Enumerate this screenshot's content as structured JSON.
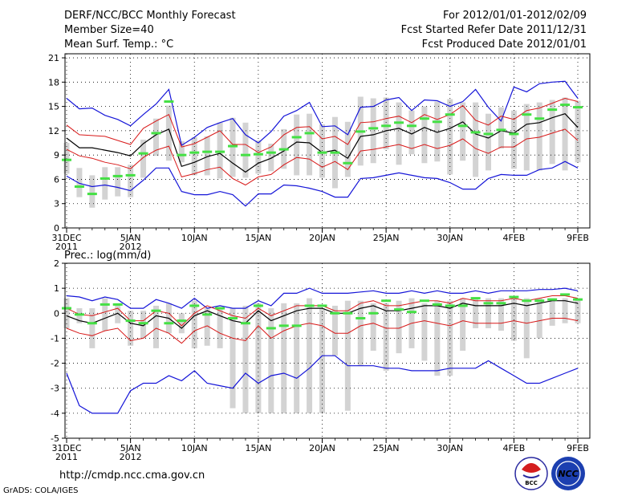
{
  "header": {
    "title": "DERF/NCC/BCC Monthly Forecast",
    "member_size": "Member Size=40",
    "variable": "Mean Surf. Temp.: °C",
    "period": "For 2012/01/01-2012/02/09",
    "started": "Fcst Started Refer Date 2011/12/31",
    "produced": "Fcst Produced Date 2012/01/01"
  },
  "footer": {
    "url": "http://cmdp.ncc.cma.gov.cn",
    "grads": "GrADS: COLA/IGES",
    "logo_bcc": "BCC",
    "logo_ncc": "NCC"
  },
  "colors": {
    "max_min": "#1515d8",
    "std": "#d81818",
    "mean": "#000000",
    "bar": "#d3d3d3",
    "median": "#44e044",
    "grid": "#000000"
  },
  "chart_data": [
    {
      "type": "line",
      "title": "Mean Surf. Temp.: °C",
      "x_tick_labels": [
        {
          "label": "31DEC",
          "sub": "2011",
          "day": 0
        },
        {
          "label": "5JAN",
          "sub": "2012",
          "day": 5
        },
        {
          "label": "10JAN",
          "day": 10
        },
        {
          "label": "15JAN",
          "day": 15
        },
        {
          "label": "20JAN",
          "day": 20
        },
        {
          "label": "25JAN",
          "day": 25
        },
        {
          "label": "30JAN",
          "day": 30
        },
        {
          "label": "4FEB",
          "day": 35
        },
        {
          "label": "9FEB",
          "day": 40
        }
      ],
      "xlim": [
        0,
        40
      ],
      "ylim": [
        0,
        21.5
      ],
      "y_ticks": [
        0,
        3,
        6,
        9,
        12,
        15,
        18,
        21
      ],
      "series": [
        {
          "name": "max",
          "values": [
            16,
            14.7,
            14.8,
            13.9,
            13.4,
            12.6,
            14,
            15.3,
            17.1,
            10.2,
            11.2,
            12.4,
            13,
            13.5,
            11.5,
            10.5,
            11.9,
            13.8,
            14.5,
            15.5,
            12.5,
            12.6,
            11.5,
            14.9,
            15,
            15.8,
            16.1,
            14.5,
            15.8,
            15.7,
            15,
            15.6,
            17.1,
            14.9,
            13.2,
            17.4,
            16.8,
            17.8,
            18,
            18.1,
            16
          ]
        },
        {
          "name": "plus_std",
          "values": [
            12.7,
            11.5,
            11.4,
            11.3,
            10.8,
            10.3,
            12.3,
            13.2,
            14,
            10,
            10.4,
            11.2,
            12,
            10.3,
            10.3,
            9.3,
            10,
            11.5,
            12.4,
            12.5,
            11,
            11.3,
            10.3,
            13,
            13.1,
            13.5,
            13.8,
            13,
            14,
            13.4,
            14,
            15.1,
            13.3,
            12.7,
            13.8,
            13.4,
            14.5,
            14.8,
            15.4,
            16,
            15.6
          ]
        },
        {
          "name": "mean",
          "values": [
            11.1,
            9.9,
            9.9,
            9.6,
            9.3,
            8.9,
            10.4,
            11.5,
            12.2,
            7.6,
            8.1,
            8.8,
            9.2,
            8,
            6.9,
            8,
            8.6,
            9.5,
            10.6,
            10.5,
            9.3,
            9.6,
            8.6,
            11.3,
            11.5,
            12,
            12.3,
            11.6,
            12.4,
            11.8,
            12.3,
            13.1,
            11.6,
            11.1,
            12,
            11.7,
            12.8,
            13,
            13.6,
            14.1,
            12.4
          ]
        },
        {
          "name": "minus_std",
          "values": [
            9.7,
            8.9,
            8.6,
            8.1,
            7.8,
            7.3,
            8.7,
            9.6,
            10.1,
            6.3,
            6.7,
            7.2,
            7.5,
            6.1,
            5.3,
            6.3,
            6.6,
            7.8,
            8.7,
            8.5,
            7.5,
            8.2,
            7.2,
            9.5,
            9.7,
            10,
            10.3,
            9.8,
            10.3,
            9.8,
            10.2,
            11,
            9.8,
            9.2,
            10,
            10,
            11,
            11.2,
            11.7,
            12.2,
            10.8
          ]
        },
        {
          "name": "min",
          "values": [
            6.4,
            5.5,
            5.1,
            5.3,
            5,
            4.6,
            5.9,
            7.4,
            7.4,
            4.5,
            4.1,
            4.1,
            4.5,
            4.1,
            2.7,
            4.2,
            4.2,
            5.3,
            5.2,
            4.9,
            4.5,
            3.8,
            3.8,
            6.1,
            6.2,
            6.5,
            6.8,
            6.5,
            6.2,
            6.1,
            5.6,
            4.8,
            4.8,
            6.1,
            6.6,
            6.5,
            6.5,
            7.2,
            7.4,
            8.2,
            7.4
          ]
        },
        {
          "name": "bar_top",
          "values": [
            10.5,
            7.4,
            6.5,
            7.5,
            7.5,
            7.8,
            10.9,
            13.5,
            15.1,
            10.7,
            11.2,
            11.3,
            13,
            13.6,
            13,
            10.8,
            10.4,
            12.2,
            14,
            14.1,
            12.8,
            13.7,
            13.1,
            16.2,
            16,
            16.1,
            15.5,
            14.5,
            15,
            15.6,
            15.9,
            15.5,
            15.5,
            14.1,
            14.9,
            14.5,
            15.3,
            15.5,
            15.8,
            16.1,
            15.7
          ]
        },
        {
          "name": "bar_bottom",
          "values": [
            6.7,
            3.8,
            2.5,
            3.5,
            3.9,
            3.8,
            6.2,
            8.9,
            8.3,
            8.1,
            6.5,
            6.5,
            6.1,
            6.3,
            6.2,
            6.7,
            7,
            7.3,
            6.5,
            6.5,
            6.2,
            4.9,
            6.3,
            7.7,
            8,
            9.7,
            7.8,
            9.1,
            8,
            8.2,
            6.6,
            8.3,
            6.3,
            7.1,
            9.8,
            7.3,
            7.1,
            7.1,
            7.9,
            7.1,
            8.1
          ]
        },
        {
          "name": "median",
          "values": [
            8.4,
            5.1,
            4.2,
            6.1,
            6.4,
            6.5,
            9.2,
            11.7,
            15.6,
            9,
            9.3,
            9.4,
            9.4,
            10.1,
            9,
            9.1,
            9.3,
            9.7,
            11.2,
            11.7,
            9.3,
            9.3,
            8,
            11.9,
            12.3,
            12.6,
            13,
            12.6,
            13.5,
            13.1,
            14,
            12.6,
            11.8,
            11.6,
            12.1,
            11.6,
            14,
            13.5,
            14.6,
            15.2,
            14.9
          ]
        }
      ]
    },
    {
      "type": "line",
      "title": "Prec.: log(mm/d)",
      "x_tick_labels": [
        {
          "label": "31DEC",
          "sub": "2011",
          "day": 0
        },
        {
          "label": "5JAN",
          "sub": "2012",
          "day": 5
        },
        {
          "label": "10JAN",
          "day": 10
        },
        {
          "label": "15JAN",
          "day": 15
        },
        {
          "label": "20JAN",
          "day": 20
        },
        {
          "label": "25JAN",
          "day": 25
        },
        {
          "label": "30JAN",
          "day": 30
        },
        {
          "label": "4FEB",
          "day": 35
        },
        {
          "label": "9FEB",
          "day": 40
        }
      ],
      "xlim": [
        0,
        40
      ],
      "ylim": [
        -5,
        2
      ],
      "y_ticks": [
        -5,
        -4,
        -3,
        -2,
        -1,
        0,
        1,
        2
      ],
      "series": [
        {
          "name": "max",
          "values": [
            0.7,
            0.65,
            0.5,
            0.65,
            0.55,
            0.2,
            0.2,
            0.55,
            0.4,
            0.2,
            0.6,
            0.2,
            0.3,
            0.2,
            0.2,
            0.5,
            0.3,
            0.8,
            0.8,
            1,
            0.8,
            0.8,
            0.8,
            0.85,
            0.9,
            0.8,
            0.8,
            0.9,
            0.8,
            0.9,
            0.8,
            0.8,
            0.9,
            0.8,
            0.9,
            0.9,
            0.9,
            0.95,
            0.95,
            1,
            0.9
          ]
        },
        {
          "name": "plus_std",
          "values": [
            0.2,
            -0.05,
            -0.1,
            0.05,
            0.2,
            -0.3,
            -0.3,
            0.1,
            0,
            -0.5,
            0,
            0.3,
            0.1,
            -0.1,
            -0.2,
            0.2,
            -0.1,
            0.1,
            0.3,
            0.3,
            0.3,
            0.1,
            0.1,
            0.4,
            0.5,
            0.3,
            0.3,
            0.4,
            0.5,
            0.5,
            0.4,
            0.6,
            0.5,
            0.5,
            0.5,
            0.6,
            0.5,
            0.6,
            0.7,
            0.7,
            0.6
          ]
        },
        {
          "name": "mean",
          "values": [
            -0.1,
            -0.3,
            -0.4,
            -0.2,
            0,
            -0.4,
            -0.5,
            -0.1,
            -0.2,
            -0.6,
            -0.1,
            0.1,
            -0.1,
            -0.3,
            -0.4,
            0.1,
            -0.3,
            -0.1,
            0.1,
            0.2,
            0.2,
            0,
            0,
            0.2,
            0.3,
            0.1,
            0.1,
            0.2,
            0.3,
            0.3,
            0.2,
            0.4,
            0.3,
            0.3,
            0.3,
            0.4,
            0.3,
            0.4,
            0.5,
            0.5,
            0.4
          ]
        },
        {
          "name": "minus_std",
          "values": [
            -0.6,
            -0.8,
            -0.9,
            -0.7,
            -0.6,
            -1.1,
            -1,
            -0.6,
            -0.8,
            -1.2,
            -0.7,
            -0.5,
            -0.8,
            -1,
            -1.1,
            -0.5,
            -1,
            -0.7,
            -0.5,
            -0.4,
            -0.5,
            -0.8,
            -0.8,
            -0.5,
            -0.4,
            -0.6,
            -0.6,
            -0.4,
            -0.3,
            -0.4,
            -0.5,
            -0.3,
            -0.4,
            -0.4,
            -0.4,
            -0.3,
            -0.4,
            -0.3,
            -0.2,
            -0.2,
            -0.3
          ]
        },
        {
          "name": "min",
          "values": [
            -2.4,
            -3.7,
            -4,
            -4,
            -4,
            -3.1,
            -2.8,
            -2.8,
            -2.5,
            -2.7,
            -2.3,
            -2.8,
            -2.9,
            -3,
            -2.4,
            -2.8,
            -2.5,
            -2.4,
            -2.6,
            -2.2,
            -1.7,
            -1.7,
            -2.1,
            -2.1,
            -2.1,
            -2.2,
            -2.2,
            -2.3,
            -2.3,
            -2.3,
            -2.2,
            -2.2,
            -2.2,
            -1.9,
            -2.2,
            -2.5,
            -2.8,
            -2.8,
            -2.6,
            -2.4,
            -2.2
          ]
        },
        {
          "name": "bar_top",
          "values": [
            0.6,
            0.2,
            0.2,
            0.6,
            0.4,
            0.1,
            0.1,
            0.3,
            0.4,
            0,
            0.5,
            0.2,
            0.2,
            0.2,
            0.3,
            0.4,
            0.2,
            0.4,
            0.4,
            0.6,
            0.2,
            0.3,
            0.5,
            0.5,
            0.4,
            0.4,
            0.5,
            0.6,
            0.4,
            0.5,
            0.5,
            0.6,
            0.6,
            0.6,
            0.6,
            0.6,
            0.6,
            0.6,
            0.6,
            0.6,
            0.6
          ]
        },
        {
          "name": "bar_bottom",
          "values": [
            -0.6,
            -0.4,
            -1.4,
            -0.7,
            -0.4,
            -1.3,
            -1,
            -1.4,
            -0.8,
            -0.8,
            -1.4,
            -1.3,
            -1.4,
            -3.8,
            -4,
            -4,
            -4,
            -4,
            -4,
            -4,
            -4,
            -1.7,
            -3.9,
            -2.1,
            -1.5,
            -2.3,
            -1.6,
            -1.4,
            -1.9,
            -2.5,
            -2.5,
            -1.5,
            -0.6,
            -0.6,
            -0.7,
            -1.1,
            -1.8,
            -1,
            -0.5,
            -0.4,
            -0.4
          ]
        },
        {
          "name": "median",
          "values": [
            0.2,
            -0.05,
            -0.4,
            0.35,
            0.35,
            -0.3,
            -0.4,
            0.1,
            -0.4,
            -0.3,
            0.3,
            -0.05,
            0.2,
            -0.2,
            -0.4,
            0.3,
            -0.6,
            -0.5,
            -0.5,
            0.3,
            0.3,
            0,
            0,
            -0.2,
            0,
            0.5,
            0.15,
            0.05,
            0.5,
            0.35,
            0.3,
            0.3,
            0.6,
            0.4,
            0.4,
            0.65,
            0.5,
            0.5,
            0.55,
            0.75,
            0.55
          ]
        }
      ]
    }
  ]
}
